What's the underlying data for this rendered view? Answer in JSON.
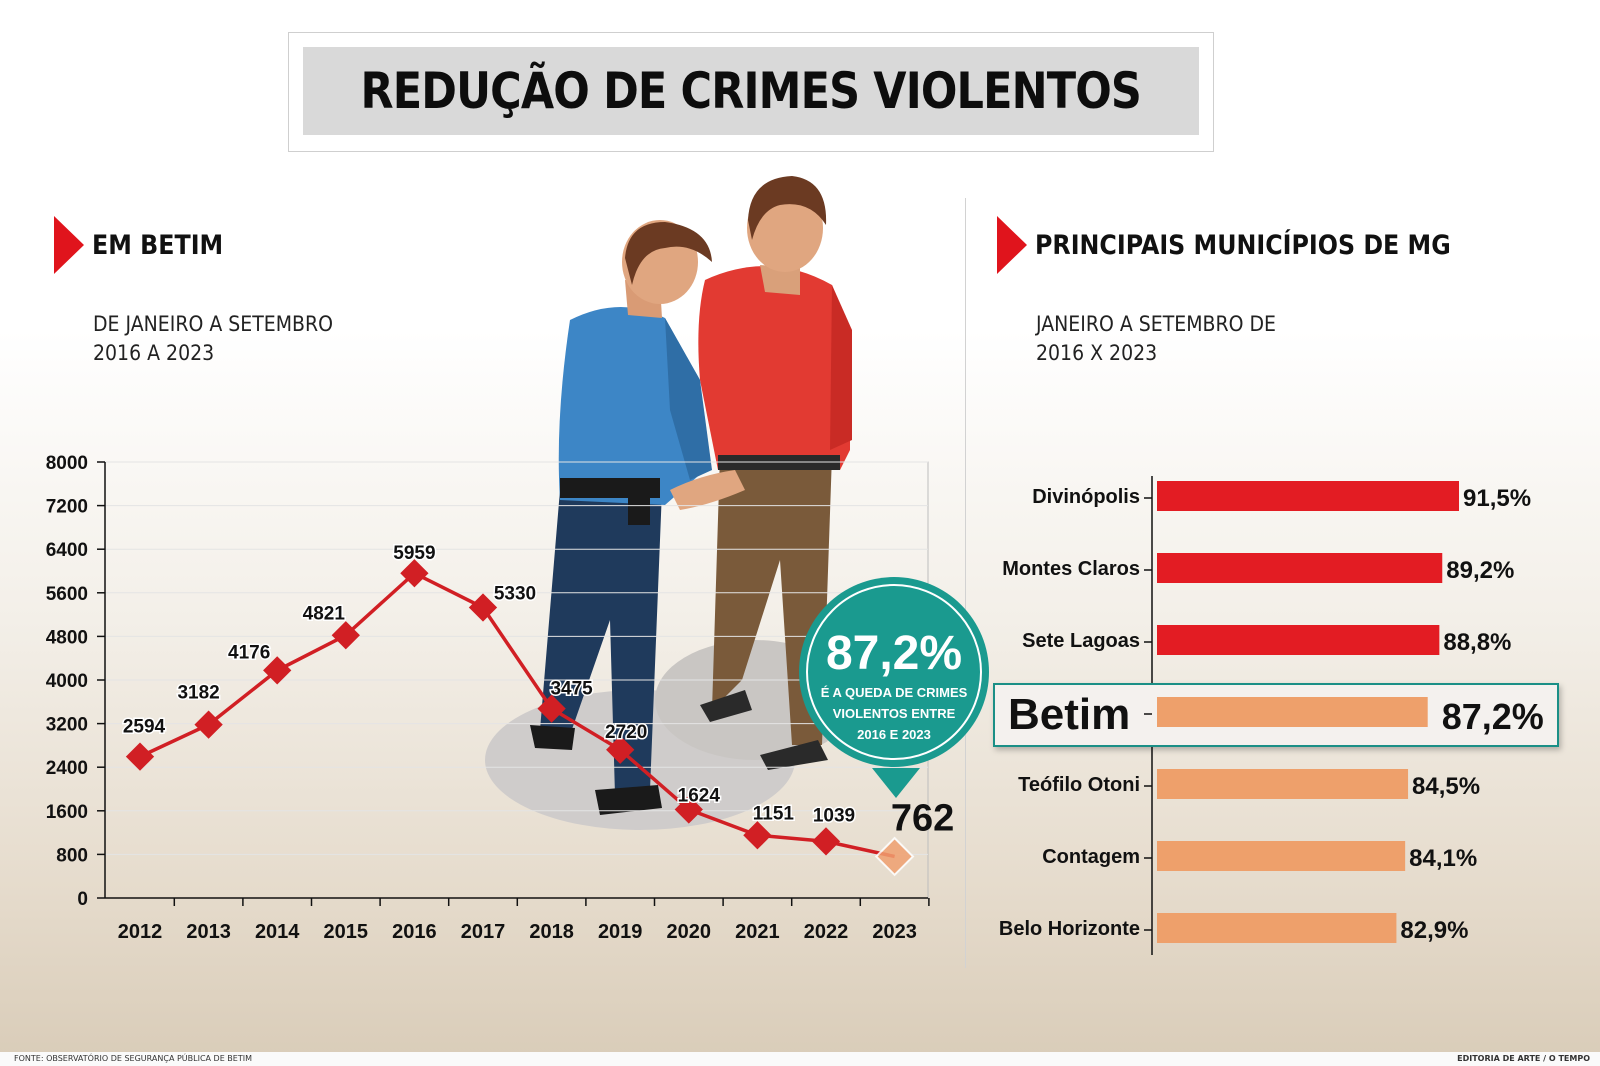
{
  "title": "REDUÇÃO DE CRIMES VIOLENTOS",
  "left_section": {
    "heading": "EM BETIM",
    "subtitle_line1": "DE JANEIRO A SETEMBRO",
    "subtitle_line2": "2016 A 2023"
  },
  "right_section": {
    "heading": "PRINCIPAIS MUNICÍPIOS DE MG",
    "subtitle_line1": "JANEIRO A SETEMBRO DE",
    "subtitle_line2": "2016 X 2023"
  },
  "callout": {
    "value": "87,2%",
    "line1": "É A QUEDA DE CRIMES",
    "line2": "VIOLENTOS ENTRE",
    "line3": "2016 E 2023"
  },
  "chart_data": [
    {
      "type": "line",
      "title": "EM BETIM",
      "categories": [
        "2012",
        "2013",
        "2014",
        "2015",
        "2016",
        "2017",
        "2018",
        "2019",
        "2020",
        "2021",
        "2022",
        "2023"
      ],
      "values": [
        2594,
        3182,
        4176,
        4821,
        5959,
        5330,
        3475,
        2720,
        1624,
        1151,
        1039,
        762
      ],
      "labels": [
        "2594",
        "3182",
        "4176",
        "4821",
        "5959",
        "5330",
        "3475",
        "2720",
        "1624",
        "1151",
        "1039",
        "762"
      ],
      "ylim": [
        0,
        8000
      ],
      "yticks": [
        0,
        800,
        1600,
        2400,
        3200,
        4000,
        4800,
        5600,
        6400,
        7200,
        8000
      ],
      "ytick_labels": [
        "0",
        "800",
        "1600",
        "2400",
        "3200",
        "4000",
        "4800",
        "5600",
        "6400",
        "7200",
        "8000"
      ],
      "grid": true,
      "colors": {
        "line": "#d11f24",
        "marker": "#d11f24",
        "highlight": "#f0a070"
      }
    },
    {
      "type": "bar",
      "orientation": "horizontal",
      "title": "PRINCIPAIS MUNICÍPIOS DE MG",
      "categories": [
        "Divinópolis",
        "Montes Claros",
        "Sete Lagoas",
        "Betim",
        "Teófilo Otoni",
        "Contagem",
        "Belo Horizonte"
      ],
      "values": [
        91.5,
        89.2,
        88.8,
        87.2,
        84.5,
        84.1,
        82.9
      ],
      "value_labels": [
        "91,5%",
        "89,2%",
        "88,8%",
        "87,2%",
        "84,5%",
        "84,1%",
        "82,9%"
      ],
      "highlight": "Betim",
      "colors": {
        "top3": "#e31c23",
        "rest": "#eea06b",
        "highlight_border": "#1a8f86"
      }
    }
  ],
  "footer": {
    "source": "FONTE: OBSERVATÓRIO DE SEGURANÇA PÚBLICA DE BETIM",
    "credit": "EDITORIA DE ARTE / O TEMPO"
  }
}
